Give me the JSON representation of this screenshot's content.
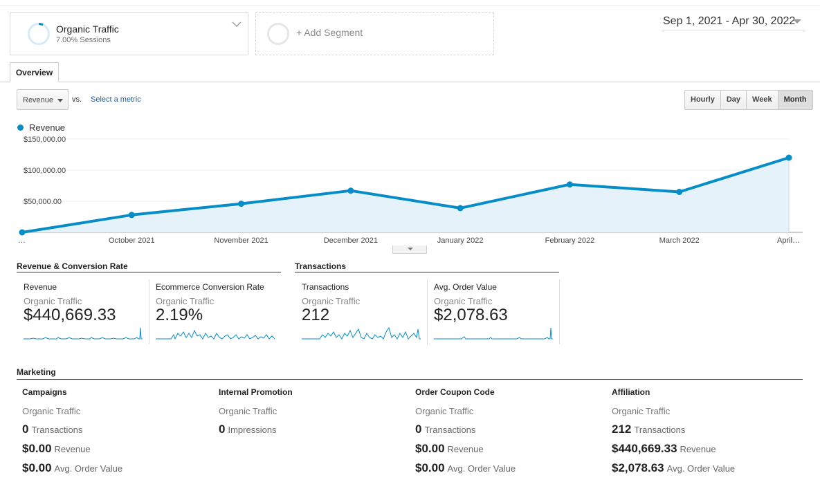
{
  "segments": {
    "primary": {
      "name": "Organic Traffic",
      "subtitle": "7.00% Sessions",
      "share": 0.07
    },
    "add_label": "+ Add Segment"
  },
  "date_range": "Sep 1, 2021 - Apr 30, 2022",
  "tabs": {
    "overview": "Overview"
  },
  "controls": {
    "metric": "Revenue",
    "vs": "vs.",
    "select_metric": "Select a metric",
    "granularity": [
      "Hourly",
      "Day",
      "Week",
      "Month"
    ],
    "active_granularity": "Month"
  },
  "chart_data": {
    "type": "area",
    "series": [
      {
        "name": "Revenue",
        "color": "#058dc7",
        "values": [
          0,
          28000,
          46000,
          67000,
          39000,
          77000,
          65000,
          120000
        ]
      }
    ],
    "x": [
      "…",
      "October 2021",
      "November 2021",
      "December 2021",
      "January 2022",
      "February 2022",
      "March 2022",
      "April…"
    ],
    "y_ticks": [
      "$150,000.00",
      "$100,000.00",
      "$50,000.00"
    ],
    "y_tick_values": [
      150000,
      100000,
      50000
    ],
    "ylim": [
      0,
      150000
    ],
    "grid": true
  },
  "sections": {
    "revenue_conversion": "Revenue & Conversion Rate",
    "transactions": "Transactions",
    "marketing": "Marketing"
  },
  "cards": [
    {
      "label": "Revenue",
      "segment": "Organic Traffic",
      "value": "$440,669.33"
    },
    {
      "label": "Ecommerce Conversion Rate",
      "segment": "Organic Traffic",
      "value": "2.19%"
    },
    {
      "label": "Transactions",
      "segment": "Organic Traffic",
      "value": "212"
    },
    {
      "label": "Avg. Order Value",
      "segment": "Organic Traffic",
      "value": "$2,078.63"
    }
  ],
  "marketing": [
    {
      "title": "Campaigns",
      "segment": "Organic Traffic",
      "rows": [
        {
          "num": "0",
          "unit": "Transactions"
        },
        {
          "num": "$0.00",
          "unit": "Revenue"
        },
        {
          "num": "$0.00",
          "unit": "Avg. Order Value"
        }
      ]
    },
    {
      "title": "Internal Promotion",
      "segment": "Organic Traffic",
      "rows": [
        {
          "num": "0",
          "unit": "Impressions"
        }
      ]
    },
    {
      "title": "Order Coupon Code",
      "segment": "Organic Traffic",
      "rows": [
        {
          "num": "0",
          "unit": "Transactions"
        },
        {
          "num": "$0.00",
          "unit": "Revenue"
        },
        {
          "num": "$0.00",
          "unit": "Avg. Order Value"
        }
      ]
    },
    {
      "title": "Affiliation",
      "segment": "Organic Traffic",
      "rows": [
        {
          "num": "212",
          "unit": "Transactions"
        },
        {
          "num": "$440,669.33",
          "unit": "Revenue"
        },
        {
          "num": "$2,078.63",
          "unit": "Avg. Order Value"
        }
      ]
    }
  ]
}
